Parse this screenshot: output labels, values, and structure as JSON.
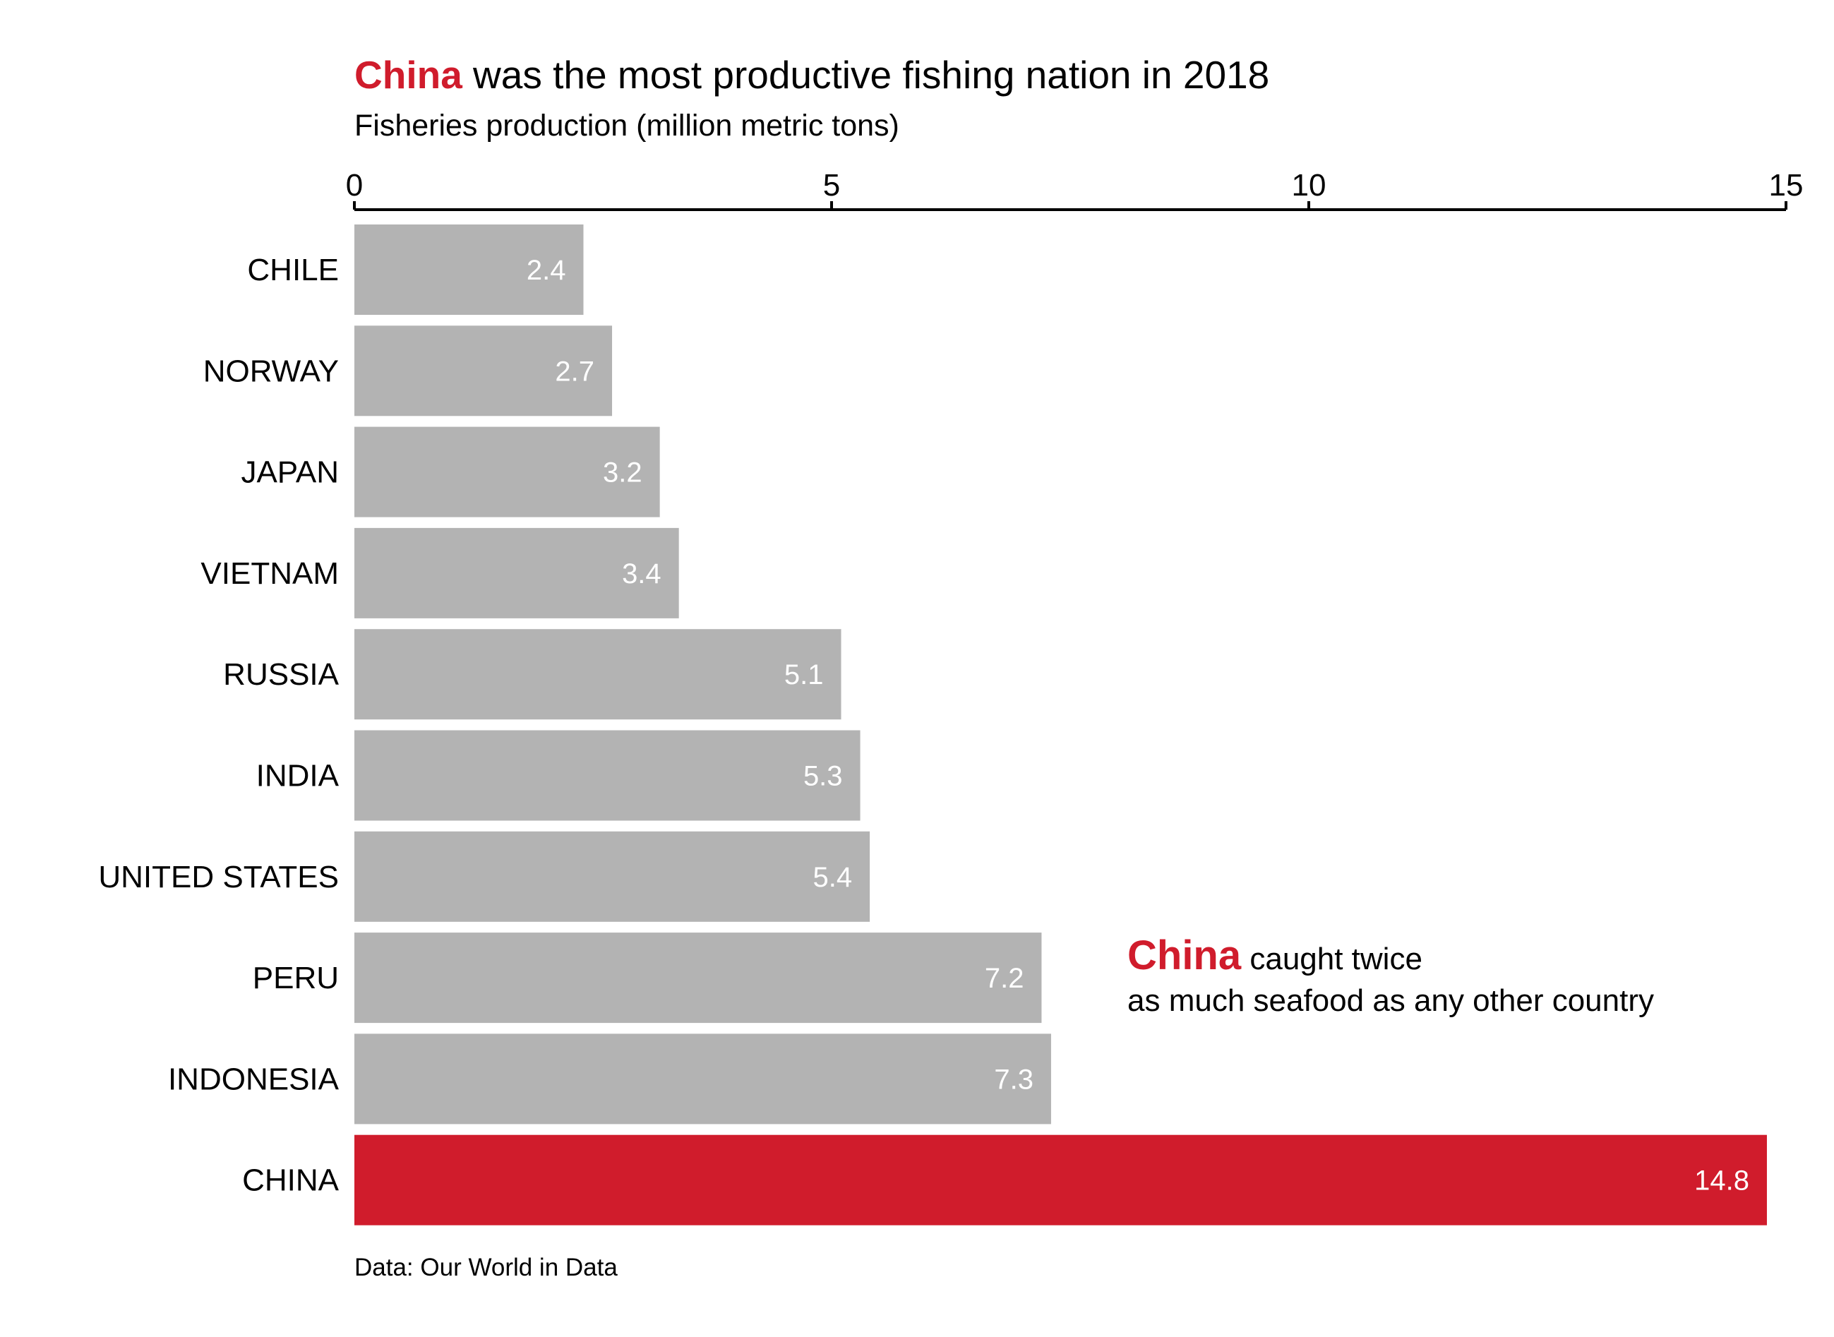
{
  "title": {
    "highlight": "China",
    "rest": " was the most productive fishing nation in 2018"
  },
  "subtitle": "Fisheries production (million metric tons)",
  "annotation": {
    "highlight": "China",
    "line1_rest": " caught twice",
    "line2": "as much seafood as any other country"
  },
  "source": "Data: Our World in Data",
  "colors": {
    "highlight": "#d01c2c",
    "bar": "#b3b3b3",
    "bar_label": "#ffffff",
    "text": "#000000",
    "axis": "#000000"
  },
  "chart_data": {
    "type": "bar",
    "orientation": "horizontal",
    "categories": [
      "CHILE",
      "NORWAY",
      "JAPAN",
      "VIETNAM",
      "RUSSIA",
      "INDIA",
      "UNITED STATES",
      "PERU",
      "INDONESIA",
      "CHINA"
    ],
    "values": [
      2.4,
      2.7,
      3.2,
      3.4,
      5.1,
      5.3,
      5.4,
      7.2,
      7.3,
      14.8
    ],
    "data_labels": [
      "2.4",
      "2.7",
      "3.2",
      "3.4",
      "5.1",
      "5.3",
      "5.4",
      "7.2",
      "7.3",
      "14.8"
    ],
    "highlight_category": "CHINA",
    "xlim": [
      0,
      15
    ],
    "x_ticks": [
      0,
      5,
      10,
      15
    ],
    "x_tick_labels": [
      "0",
      "5",
      "10",
      "15"
    ],
    "x_axis_position": "top",
    "grid": false,
    "legend": "none"
  }
}
